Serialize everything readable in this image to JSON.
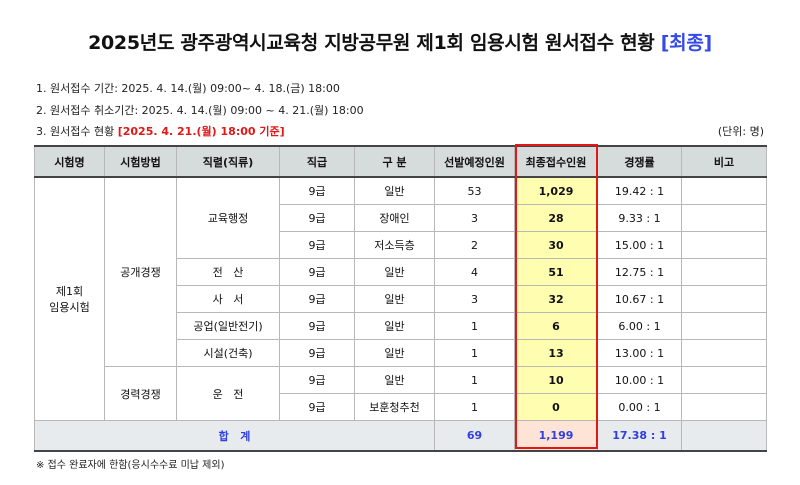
{
  "title": {
    "main": "2025년도 광주광역시교육청 지방공무원 제1회 임용시험 원서접수 현황",
    "tag": "[최종]"
  },
  "info": {
    "line1": "1. 원서접수 기간: 2025. 4. 14.(월) 09:00~ 4. 18.(금) 18:00",
    "line2": "2. 원서접수 취소기간: 2025. 4. 14.(월) 09:00 ~ 4. 21.(월) 18:00",
    "line3_prefix": "3. 원서접수 현황 ",
    "line3_date": "[2025. 4. 21.(월) 18:00 기준]",
    "unit": "(단위: 명)"
  },
  "headers": [
    "시험명",
    "시험방법",
    "직렬(직류)",
    "직급",
    "구 분",
    "선발예정인원",
    "최종접수인원",
    "경쟁률",
    "비고"
  ],
  "exam_name": "제1회\n임용시험",
  "methods": {
    "open": "공개경쟁",
    "career": "경력경쟁"
  },
  "series": {
    "edu_admin": "교육행정",
    "computing": "전   산",
    "clerical": "사   서",
    "industrial": "공업(일반전기)",
    "facility": "시설(건축)",
    "driving": "운   전"
  },
  "rows": [
    {
      "grade": "9급",
      "category": "일반",
      "planned": "53",
      "received": "1,029",
      "ratio": "19.42 : 1",
      "note": ""
    },
    {
      "grade": "9급",
      "category": "장애인",
      "planned": "3",
      "received": "28",
      "ratio": "9.33 : 1",
      "note": ""
    },
    {
      "grade": "9급",
      "category": "저소득층",
      "planned": "2",
      "received": "30",
      "ratio": "15.00 : 1",
      "note": ""
    },
    {
      "grade": "9급",
      "category": "일반",
      "planned": "4",
      "received": "51",
      "ratio": "12.75 : 1",
      "note": ""
    },
    {
      "grade": "9급",
      "category": "일반",
      "planned": "3",
      "received": "32",
      "ratio": "10.67 : 1",
      "note": ""
    },
    {
      "grade": "9급",
      "category": "일반",
      "planned": "1",
      "received": "6",
      "ratio": "6.00 : 1",
      "note": ""
    },
    {
      "grade": "9급",
      "category": "일반",
      "planned": "1",
      "received": "13",
      "ratio": "13.00 : 1",
      "note": ""
    },
    {
      "grade": "9급",
      "category": "일반",
      "planned": "1",
      "received": "10",
      "ratio": "10.00 : 1",
      "note": ""
    },
    {
      "grade": "9급",
      "category": "보훈청추천",
      "planned": "1",
      "received": "0",
      "ratio": "0.00 : 1",
      "note": ""
    }
  ],
  "total": {
    "label": "합   계",
    "planned": "69",
    "received": "1,199",
    "ratio": "17.38 : 1",
    "note": ""
  },
  "footnote": "※ 접수 완료자에 한함(응시수수료 미납 제외)"
}
